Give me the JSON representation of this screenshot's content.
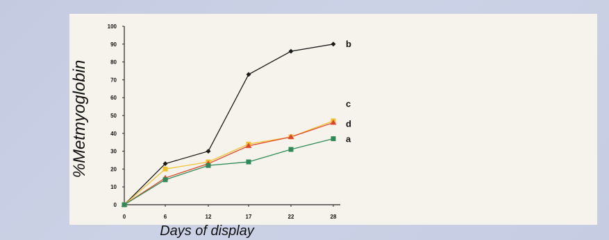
{
  "chart_data": {
    "type": "line",
    "title": "",
    "xlabel": "Days of display",
    "ylabel": "%Metmyoglobin",
    "x": [
      0,
      6,
      12,
      17,
      22,
      28
    ],
    "x_tick_labels": [
      "0",
      "6",
      "12",
      "17",
      "22",
      "28"
    ],
    "ylim": [
      0,
      100
    ],
    "y_ticks": [
      0,
      10,
      20,
      30,
      40,
      50,
      60,
      70,
      80,
      90,
      100
    ],
    "grid": false,
    "series": [
      {
        "name": "b",
        "values": [
          0,
          23,
          30,
          73,
          86,
          90
        ],
        "color": "#1a1a1a",
        "marker": "diamond"
      },
      {
        "name": "c",
        "values": [
          0,
          20,
          24,
          34,
          38,
          47
        ],
        "color": "#f2c230",
        "marker": "square"
      },
      {
        "name": "d",
        "values": [
          0,
          15,
          23,
          33,
          38,
          46
        ],
        "color": "#e0452b",
        "marker": "triangle"
      },
      {
        "name": "a",
        "values": [
          0,
          14,
          22,
          24,
          31,
          37
        ],
        "color": "#2e8b57",
        "marker": "square"
      }
    ]
  }
}
